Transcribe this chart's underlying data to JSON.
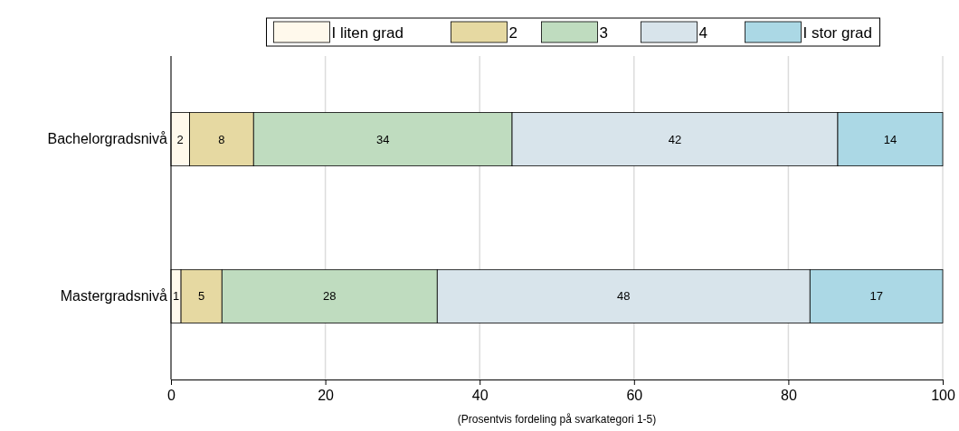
{
  "chart_data": {
    "type": "bar",
    "orientation": "horizontal",
    "stacked": true,
    "categories": [
      "Bachelorgradsnivå",
      "Mastergradsnivå"
    ],
    "series": [
      {
        "name": "I liten grad",
        "color": "#fff9ec",
        "values": [
          2.4,
          1.3
        ],
        "value_labels": [
          "2",
          "1"
        ]
      },
      {
        "name": "2",
        "color": "#e6d9a2",
        "values": [
          8.3,
          5.3
        ],
        "value_labels": [
          "8",
          "5"
        ]
      },
      {
        "name": "3",
        "color": "#bfdcbf",
        "values": [
          33.5,
          27.9
        ],
        "value_labels": [
          "34",
          "28"
        ]
      },
      {
        "name": "4",
        "color": "#d8e4eb",
        "values": [
          42.2,
          48.3
        ],
        "value_labels": [
          "42",
          "48"
        ]
      },
      {
        "name": "I stor grad",
        "color": "#abd8e5",
        "values": [
          13.6,
          17.2
        ],
        "value_labels": [
          "14",
          "17"
        ]
      }
    ],
    "xlim": [
      0,
      100
    ],
    "xticks": [
      0,
      20,
      40,
      60,
      80,
      100
    ],
    "xlabel": "(Prosentvis fordeling på svarkategori 1-5)",
    "grid": "x",
    "legend": "top"
  }
}
